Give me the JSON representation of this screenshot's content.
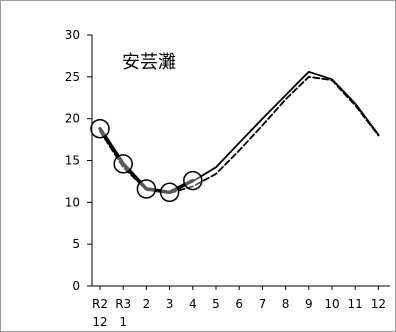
{
  "chart_data": {
    "type": "line",
    "title": "安芸灘",
    "xlabel": "",
    "ylabel": "",
    "ylim": [
      0,
      30
    ],
    "yticks": [
      0,
      5,
      10,
      15,
      20,
      25,
      30
    ],
    "grid": false,
    "legend": "none",
    "x_tick_labels": [
      {
        "line1": "R2",
        "line2": "12"
      },
      {
        "line1": "R3",
        "line2": "1"
      },
      {
        "line1": "2",
        "line2": ""
      },
      {
        "line1": "3",
        "line2": ""
      },
      {
        "line1": "4",
        "line2": ""
      },
      {
        "line1": "5",
        "line2": ""
      },
      {
        "line1": "6",
        "line2": ""
      },
      {
        "line1": "7",
        "line2": ""
      },
      {
        "line1": "8",
        "line2": ""
      },
      {
        "line1": "9",
        "line2": ""
      },
      {
        "line1": "10",
        "line2": ""
      },
      {
        "line1": "11",
        "line2": ""
      },
      {
        "line1": "12",
        "line2": ""
      }
    ],
    "series": [
      {
        "style": "solid",
        "color": "#000000",
        "values": [
          18.8,
          14.5,
          11.6,
          11.1,
          12.5,
          14.2,
          17.1,
          20.0,
          22.8,
          25.6,
          24.7,
          21.8,
          18.1
        ]
      },
      {
        "style": "dashed",
        "color": "#000000",
        "values": [
          18.5,
          14.2,
          11.5,
          11.1,
          11.9,
          13.4,
          16.2,
          19.2,
          22.3,
          25.0,
          24.6,
          21.6,
          18.0
        ]
      },
      {
        "style": "observed-thick-with-markers",
        "color": "#000000",
        "values": [
          18.8,
          14.6,
          11.6,
          11.2,
          12.6
        ]
      }
    ]
  }
}
